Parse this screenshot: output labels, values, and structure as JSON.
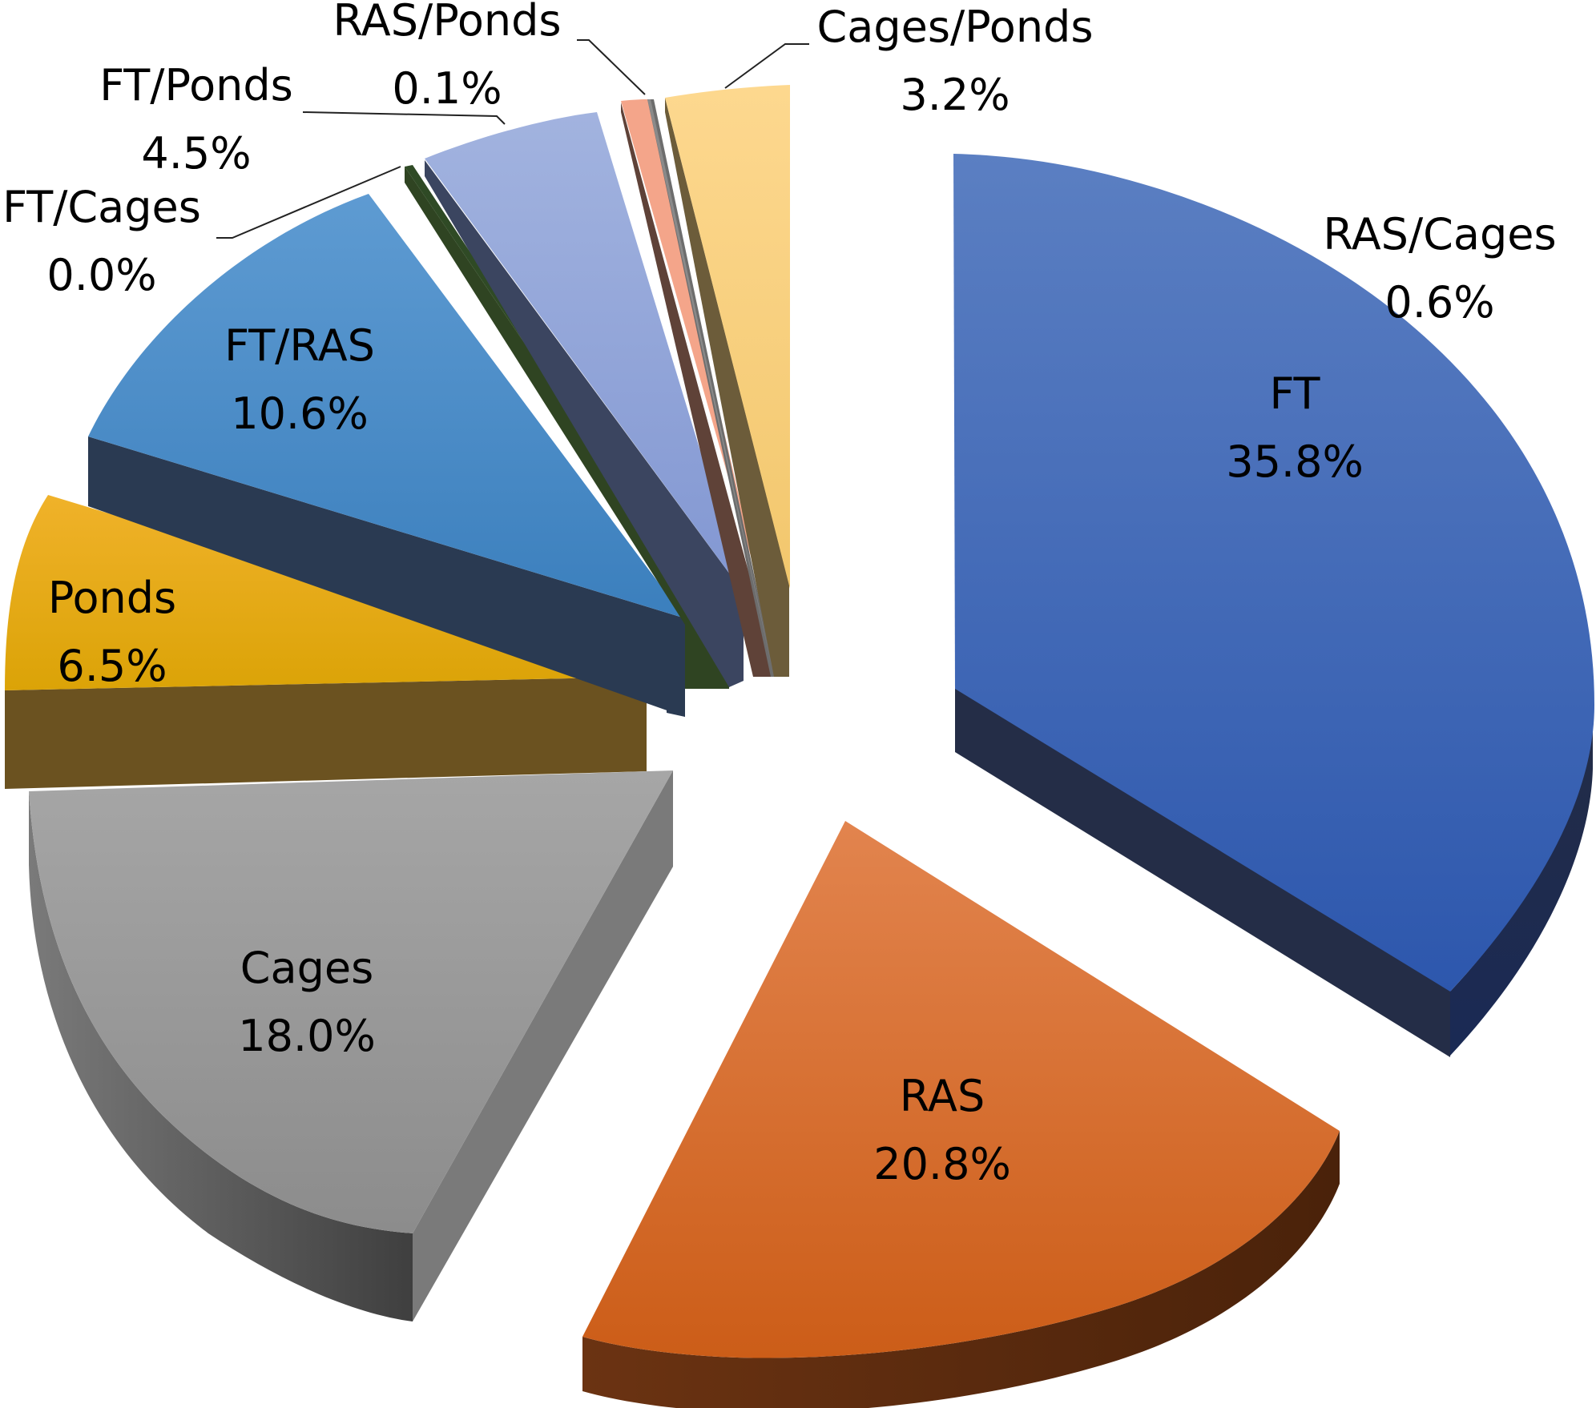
{
  "chart_data": {
    "type": "pie",
    "style": "3d-exploded",
    "title": "",
    "slices": [
      {
        "label": "FT",
        "value": 35.8,
        "display": "35.8%",
        "color": "#3561b3",
        "label_placement": "inside"
      },
      {
        "label": "RAS",
        "value": 20.8,
        "display": "20.8%",
        "color": "#db6a25",
        "label_placement": "inside"
      },
      {
        "label": "Cages",
        "value": 18.0,
        "display": "18.0%",
        "color": "#9a9a9a",
        "label_placement": "inside"
      },
      {
        "label": "Ponds",
        "value": 6.5,
        "display": "6.5%",
        "color": "#e6a70c",
        "label_placement": "inside"
      },
      {
        "label": "FT/RAS",
        "value": 10.6,
        "display": "10.6%",
        "color": "#4a8bc6",
        "label_placement": "inside"
      },
      {
        "label": "FT/Cages",
        "value": 0.0,
        "display": "0.0%",
        "color": "#2f4a25",
        "label_placement": "outside"
      },
      {
        "label": "FT/Ponds",
        "value": 4.5,
        "display": "4.5%",
        "color": "#8ea2d8",
        "label_placement": "outside"
      },
      {
        "label": "RAS/Ponds",
        "value": 0.1,
        "display": "0.1%",
        "color": "#8a8a8a",
        "label_placement": "outside"
      },
      {
        "label": "RAS/Cages",
        "value": 0.6,
        "display": "0.6%",
        "color": "#f4a58a",
        "label_placement": "outside"
      },
      {
        "label": "Cages/Ponds",
        "value": 3.2,
        "display": "3.2%",
        "color": "#fdd68a",
        "label_placement": "outside"
      }
    ]
  }
}
